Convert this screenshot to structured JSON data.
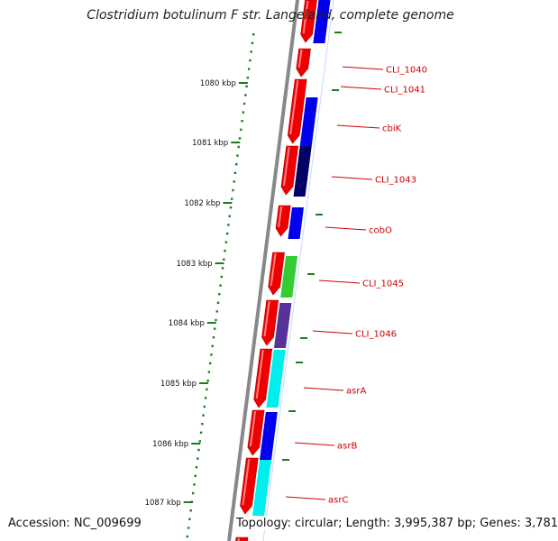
{
  "title": "Clostridium botulinum F str. Langeland, complete genome",
  "footer": {
    "accession": "Accession: NC_009699",
    "summary": "Topology: circular; Length: 3,995,387 bp; Genes: 3,781"
  },
  "colors": {
    "backbone": "#888888",
    "tick": "#1e7a1e",
    "label": "#cc0000",
    "cds_forward": "#ee0000"
  },
  "scale_ticks": [
    "1080 kbp",
    "1081 kbp",
    "1082 kbp",
    "1083 kbp",
    "1084 kbp",
    "1085 kbp",
    "1086 kbp",
    "1087 kbp"
  ],
  "genes": [
    {
      "name": "CLI_1040"
    },
    {
      "name": "CLI_1041"
    },
    {
      "name": "cbiK"
    },
    {
      "name": "CLI_1043"
    },
    {
      "name": "cobO"
    },
    {
      "name": "CLI_1045"
    },
    {
      "name": "CLI_1046"
    },
    {
      "name": "asrA"
    },
    {
      "name": "asrB"
    },
    {
      "name": "asrC"
    }
  ]
}
